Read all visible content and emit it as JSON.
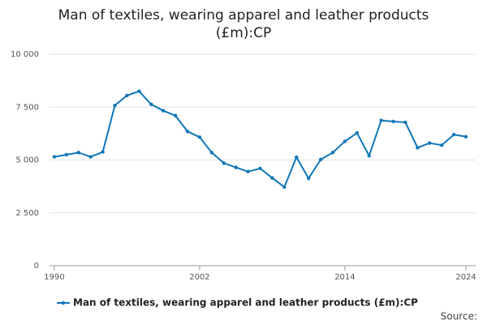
{
  "chart_data": {
    "type": "line",
    "title": "Man of textiles, wearing apparel and leather products (£m):CP",
    "x": [
      1990,
      1991,
      1992,
      1993,
      1994,
      1995,
      1996,
      1997,
      1998,
      1999,
      2000,
      2001,
      2002,
      2003,
      2004,
      2005,
      2006,
      2007,
      2008,
      2009,
      2010,
      2011,
      2012,
      2013,
      2014,
      2015,
      2016,
      2017,
      2018,
      2019,
      2020,
      2021,
      2022,
      2023,
      2024
    ],
    "series": [
      {
        "name": "Man of textiles, wearing apparel and leather products (£m):CP",
        "color": "#0f76b8",
        "values": [
          5150,
          5250,
          5350,
          5150,
          5380,
          7580,
          8050,
          8250,
          7630,
          7330,
          7100,
          6350,
          6080,
          5350,
          4850,
          4650,
          4450,
          4600,
          4150,
          3720,
          5130,
          4130,
          5020,
          5350,
          5880,
          6280,
          5200,
          6870,
          6820,
          6780,
          5580,
          5800,
          5700,
          6200,
          6100
        ]
      }
    ],
    "xlim": [
      1989.6,
      2024.8
    ],
    "xticks": [
      1990,
      2002,
      2014,
      2024
    ],
    "ylim": [
      0,
      10000
    ],
    "yticks": [
      0,
      {
        "value": 2500,
        "label": "2 500"
      },
      {
        "value": 5000,
        "label": "5 000"
      },
      {
        "value": 7500,
        "label": "7 500"
      },
      {
        "value": 10000,
        "label": "10 000"
      }
    ],
    "grid": true,
    "legend": "bottom",
    "source_label": "Source:"
  }
}
